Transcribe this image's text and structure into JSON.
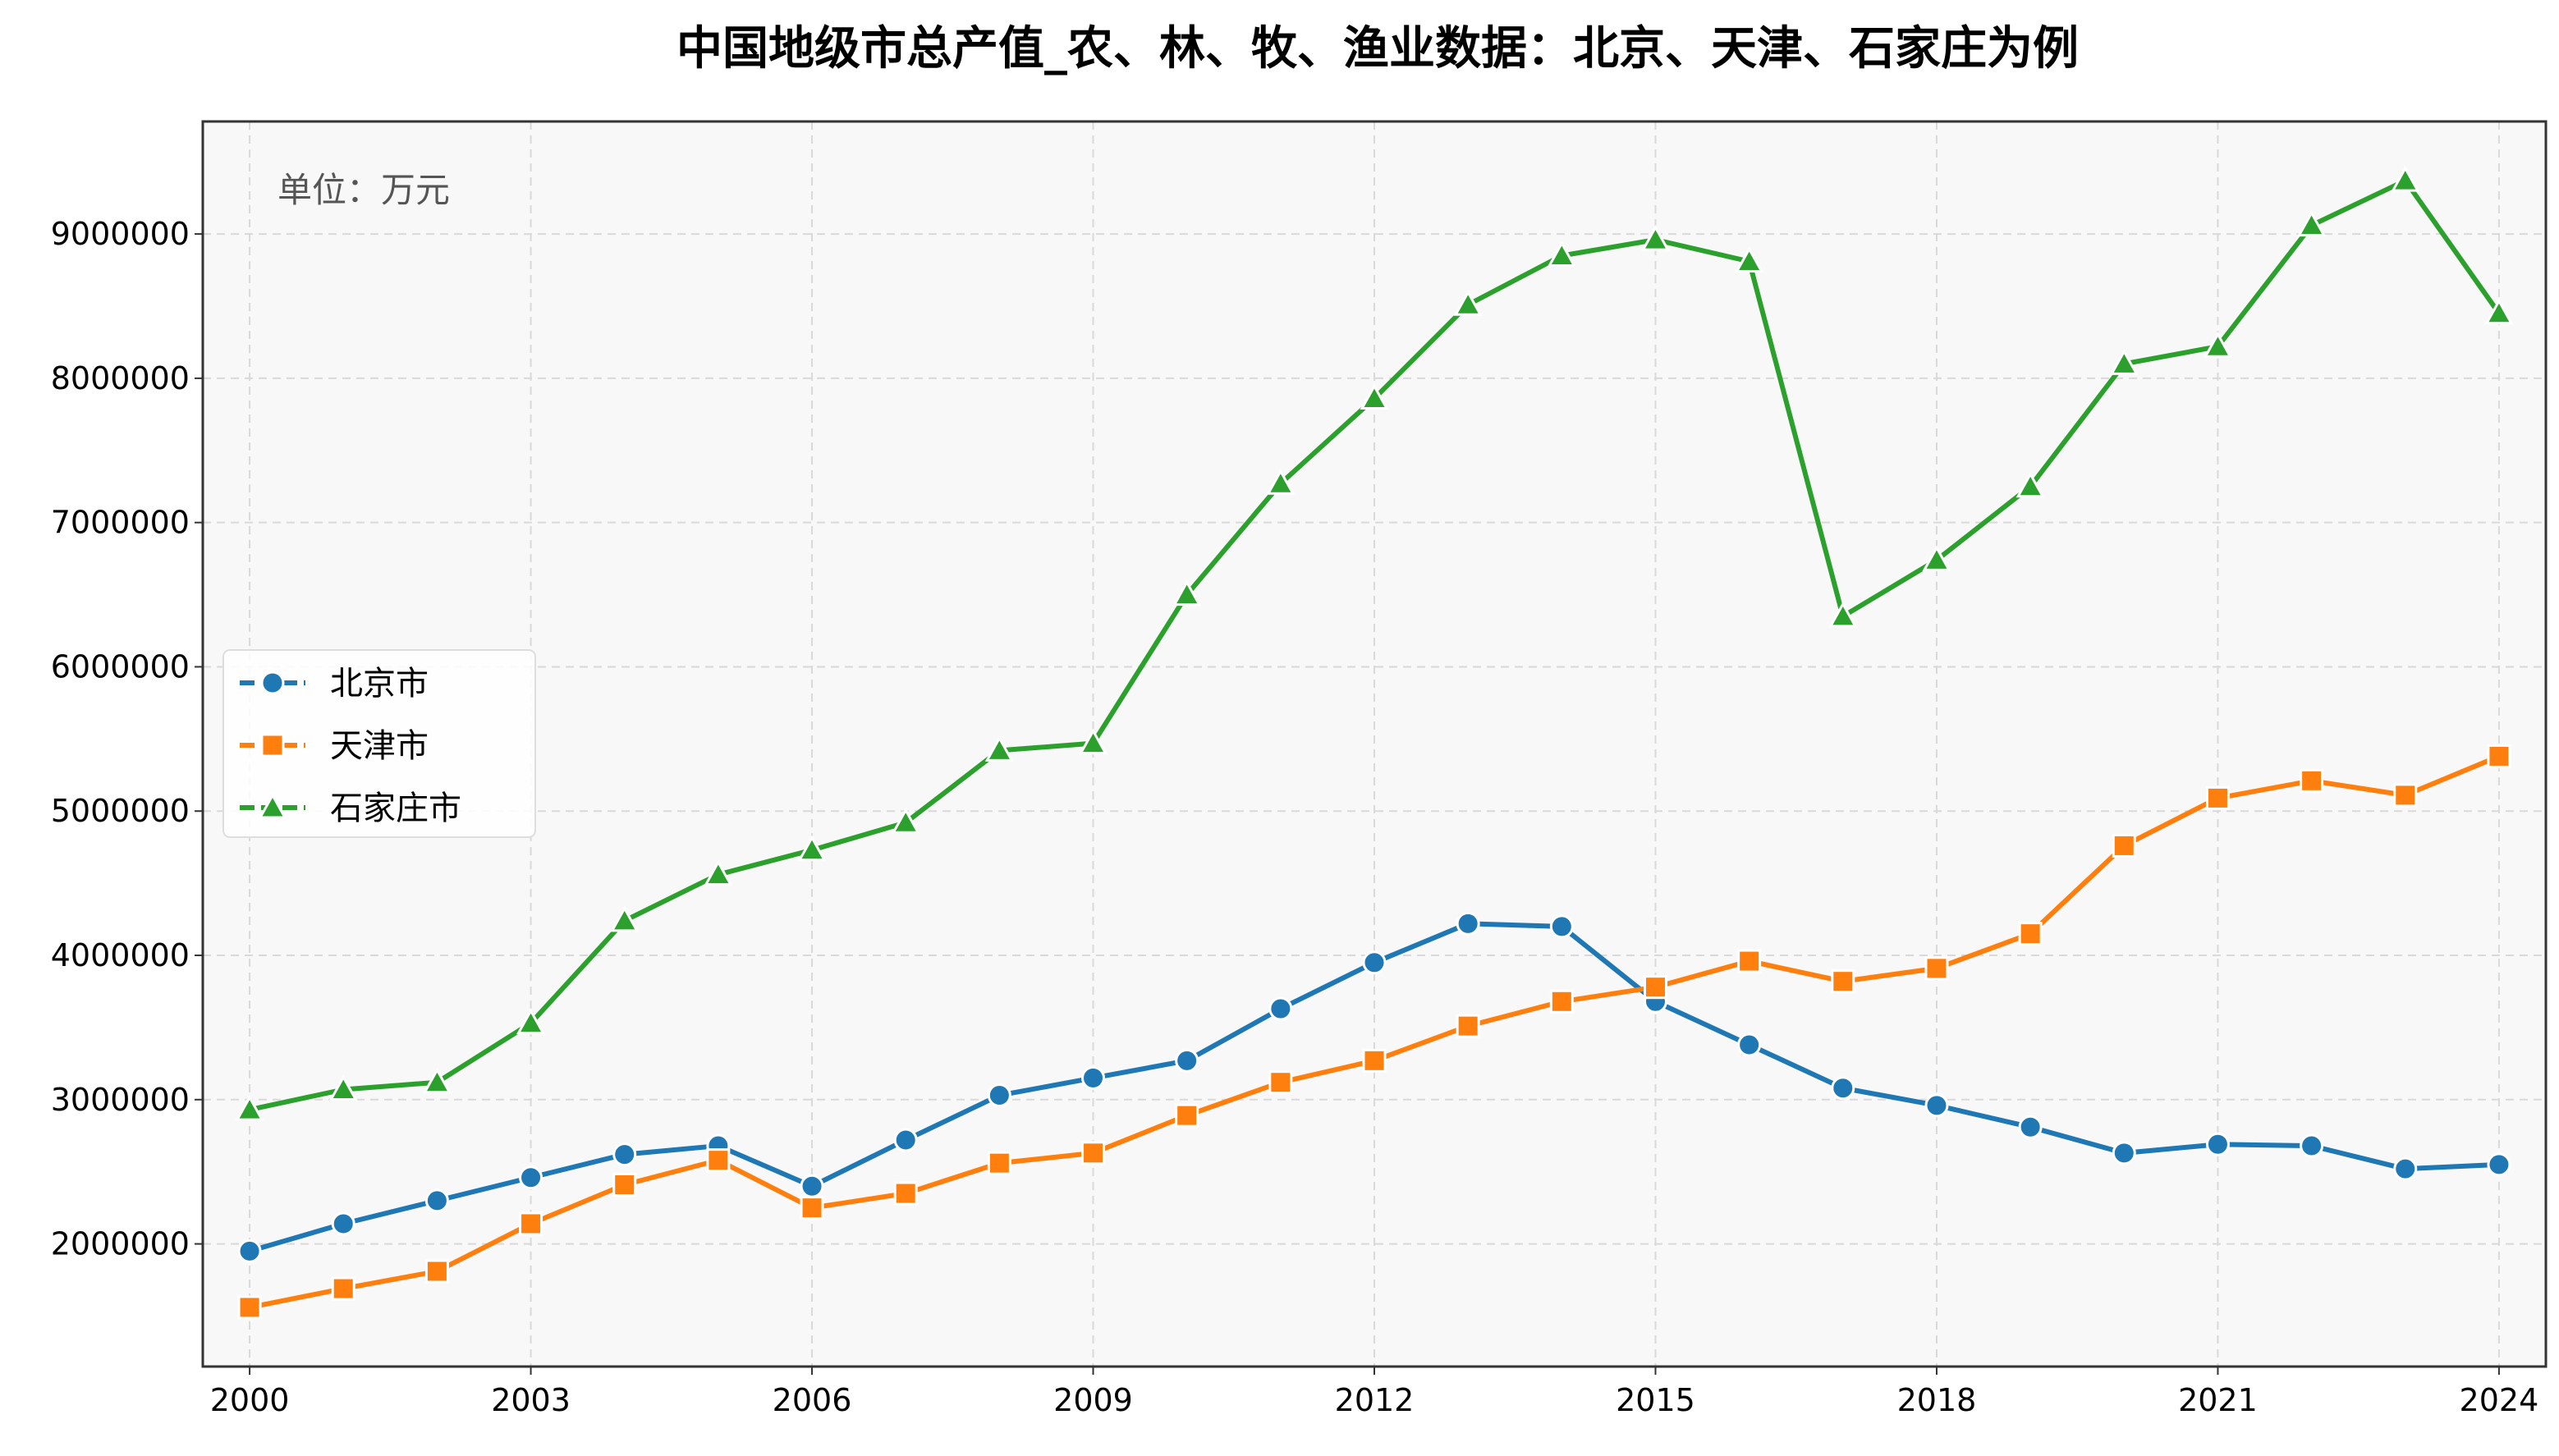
{
  "chart_data": {
    "type": "line",
    "title": "中国地级市总产值_农、林、牧、渔业数据：北京、天津、石家庄为例",
    "annotation": "单位：万元",
    "xlabel": "",
    "ylabel": "",
    "x": [
      2000,
      2001,
      2002,
      2003,
      2004,
      2005,
      2006,
      2007,
      2008,
      2009,
      2010,
      2011,
      2012,
      2013,
      2014,
      2015,
      2016,
      2017,
      2018,
      2019,
      2020,
      2021,
      2022,
      2023,
      2024
    ],
    "xticks": [
      2000,
      2003,
      2006,
      2009,
      2012,
      2015,
      2018,
      2021,
      2024
    ],
    "xlim": [
      1999.5,
      2024.5
    ],
    "yticks": [
      2000000,
      3000000,
      4000000,
      5000000,
      6000000,
      7000000,
      8000000,
      9000000
    ],
    "ylim": [
      1150000,
      9780000
    ],
    "grid": true,
    "legend_position": "center-left",
    "series": [
      {
        "name": "北京市",
        "color": "#1f77b4",
        "marker": "circle",
        "values": [
          1950000,
          2140000,
          2300000,
          2460000,
          2620000,
          2680000,
          2400000,
          2720000,
          3030000,
          3150000,
          3270000,
          3630000,
          3950000,
          4220000,
          4200000,
          3680000,
          3380000,
          3080000,
          2960000,
          2810000,
          2630000,
          2690000,
          2680000,
          2520000,
          2550000
        ]
      },
      {
        "name": "天津市",
        "color": "#ff7f0e",
        "marker": "square",
        "values": [
          1560000,
          1690000,
          1810000,
          2140000,
          2410000,
          2580000,
          2250000,
          2350000,
          2560000,
          2630000,
          2890000,
          3120000,
          3270000,
          3510000,
          3680000,
          3780000,
          3960000,
          3820000,
          3910000,
          4150000,
          4760000,
          5090000,
          5210000,
          5110000,
          5380000
        ]
      },
      {
        "name": "石家庄市",
        "color": "#2ca02c",
        "marker": "triangle",
        "values": [
          2930000,
          3070000,
          3120000,
          3530000,
          4240000,
          4560000,
          4730000,
          4920000,
          5420000,
          5470000,
          6500000,
          7270000,
          7860000,
          8510000,
          8850000,
          8960000,
          8810000,
          6350000,
          6740000,
          7250000,
          8100000,
          8220000,
          9060000,
          9370000,
          8450000
        ]
      }
    ]
  }
}
